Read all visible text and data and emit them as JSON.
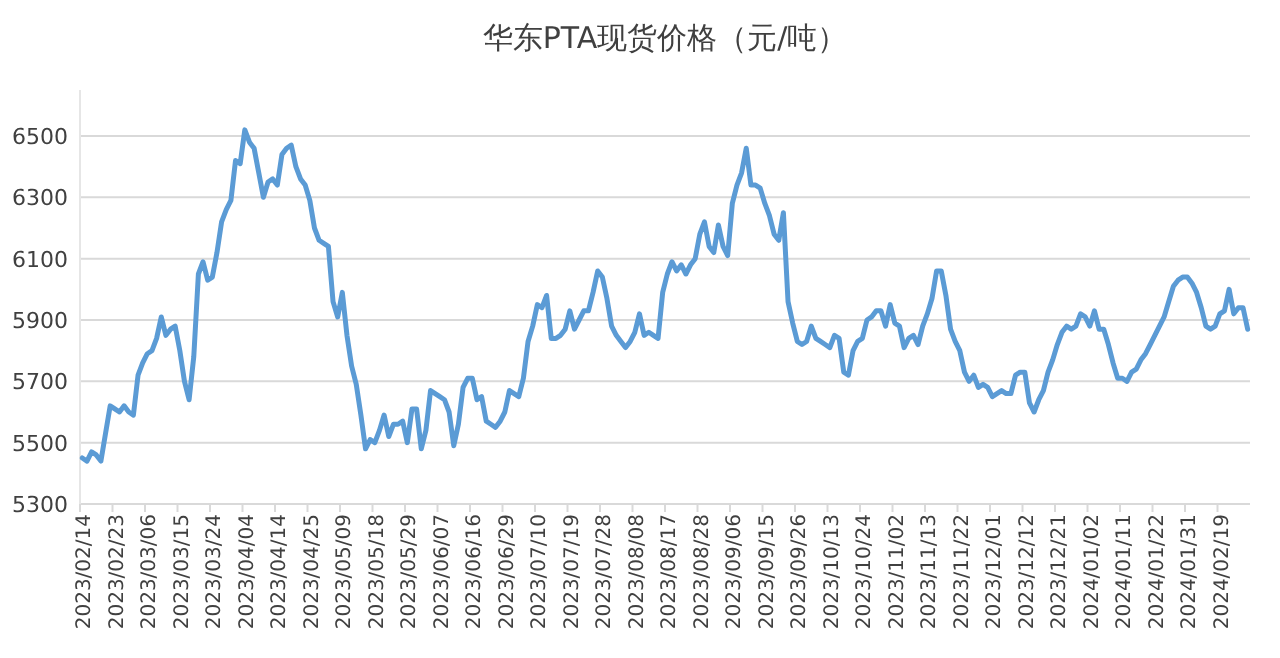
{
  "chart_data": {
    "type": "line",
    "title": "华东PTA现货价格（元/吨）",
    "categories": [
      "2023/02/14",
      null,
      null,
      null,
      null,
      null,
      null,
      "2023/02/23",
      null,
      null,
      null,
      null,
      null,
      null,
      "2023/03/06",
      null,
      null,
      null,
      null,
      null,
      null,
      "2023/03/15",
      null,
      null,
      null,
      null,
      null,
      null,
      "2023/03/24",
      null,
      null,
      null,
      null,
      null,
      null,
      "2023/04/04",
      null,
      null,
      null,
      null,
      null,
      null,
      "2023/04/14",
      null,
      null,
      null,
      null,
      null,
      null,
      "2023/04/25",
      null,
      null,
      null,
      null,
      null,
      null,
      "2023/05/09",
      null,
      null,
      null,
      null,
      null,
      null,
      "2023/05/18",
      null,
      null,
      null,
      null,
      null,
      null,
      "2023/05/29",
      null,
      null,
      null,
      null,
      null,
      null,
      "2023/06/07",
      null,
      null,
      null,
      null,
      null,
      null,
      "2023/06/16",
      null,
      null,
      null,
      null,
      null,
      null,
      "2023/06/29",
      null,
      null,
      null,
      null,
      null,
      null,
      "2023/07/10",
      null,
      null,
      null,
      null,
      null,
      null,
      "2023/07/19",
      null,
      null,
      null,
      null,
      null,
      null,
      "2023/07/28",
      null,
      null,
      null,
      null,
      null,
      null,
      "2023/08/08",
      null,
      null,
      null,
      null,
      null,
      null,
      "2023/08/17",
      null,
      null,
      null,
      null,
      null,
      null,
      "2023/08/28",
      null,
      null,
      null,
      null,
      null,
      null,
      "2023/09/06",
      null,
      null,
      null,
      null,
      null,
      null,
      "2023/09/15",
      null,
      null,
      null,
      null,
      null,
      null,
      "2023/09/26",
      null,
      null,
      null,
      null,
      null,
      null,
      "2023/10/13",
      null,
      null,
      null,
      null,
      null,
      null,
      "2023/10/24",
      null,
      null,
      null,
      null,
      null,
      null,
      "2023/11/02",
      null,
      null,
      null,
      null,
      null,
      null,
      "2023/11/13",
      null,
      null,
      null,
      null,
      null,
      null,
      "2023/11/22",
      null,
      null,
      null,
      null,
      null,
      null,
      "2023/12/01",
      null,
      null,
      null,
      null,
      null,
      null,
      "2023/12/12",
      null,
      null,
      null,
      null,
      null,
      null,
      "2023/12/21",
      null,
      null,
      null,
      null,
      null,
      null,
      "2024/01/02",
      null,
      null,
      null,
      null,
      null,
      null,
      "2024/01/11",
      null,
      null,
      null,
      null,
      null,
      null,
      "2024/01/22",
      null,
      null,
      null,
      null,
      null,
      null,
      "2024/01/31",
      null,
      null,
      null,
      null,
      null,
      null,
      "2024/02/19",
      null,
      null,
      null,
      null,
      null,
      null
    ],
    "series": [
      {
        "color": "#5b9bd5",
        "values": [
          5450,
          5440,
          5470,
          5460,
          5440,
          5530,
          5620,
          5610,
          5600,
          5620,
          5600,
          5590,
          5720,
          5760,
          5790,
          5800,
          5840,
          5910,
          5850,
          5870,
          5880,
          5800,
          5700,
          5640,
          5780,
          6050,
          6090,
          6030,
          6040,
          6120,
          6220,
          6260,
          6290,
          6420,
          6410,
          6520,
          6480,
          6460,
          6380,
          6300,
          6350,
          6360,
          6340,
          6440,
          6460,
          6470,
          6400,
          6360,
          6340,
          6290,
          6200,
          6160,
          6150,
          6140,
          5960,
          5910,
          5990,
          5850,
          5750,
          5690,
          5590,
          5480,
          5510,
          5500,
          5540,
          5590,
          5520,
          5560,
          5560,
          5570,
          5500,
          5610,
          5610,
          5480,
          5540,
          5670,
          5660,
          5650,
          5640,
          5600,
          5490,
          5560,
          5680,
          5710,
          5710,
          5640,
          5650,
          5570,
          5560,
          5550,
          5570,
          5600,
          5670,
          5660,
          5650,
          5710,
          5830,
          5880,
          5950,
          5940,
          5980,
          5840,
          5840,
          5850,
          5870,
          5930,
          5870,
          5900,
          5930,
          5930,
          5990,
          6060,
          6040,
          5970,
          5880,
          5850,
          5830,
          5810,
          5830,
          5860,
          5920,
          5850,
          5860,
          5850,
          5840,
          5990,
          6050,
          6090,
          6060,
          6080,
          6050,
          6080,
          6100,
          6180,
          6220,
          6140,
          6120,
          6210,
          6140,
          6110,
          6280,
          6340,
          6380,
          6460,
          6340,
          6340,
          6330,
          6280,
          6240,
          6180,
          6160,
          6250,
          5960,
          5890,
          5830,
          5820,
          5830,
          5880,
          5840,
          5830,
          5820,
          5810,
          5850,
          5840,
          5730,
          5720,
          5800,
          5830,
          5840,
          5900,
          5910,
          5930,
          5930,
          5880,
          5950,
          5890,
          5880,
          5810,
          5840,
          5850,
          5820,
          5880,
          5920,
          5970,
          6060,
          6060,
          5980,
          5870,
          5830,
          5800,
          5730,
          5700,
          5720,
          5680,
          5690,
          5680,
          5650,
          5660,
          5670,
          5660,
          5660,
          5720,
          5730,
          5730,
          5630,
          5600,
          5640,
          5670,
          5730,
          5770,
          5820,
          5860,
          5880,
          5870,
          5880,
          5920,
          5910,
          5880,
          5930,
          5870,
          5870,
          5820,
          5760,
          5710,
          5710,
          5700,
          5730,
          5740,
          5770,
          5790,
          5820,
          5850,
          5880,
          5910,
          5960,
          6010,
          6030,
          6040,
          6040,
          6020,
          5990,
          5940,
          5880,
          5870,
          5880,
          5920,
          5930,
          6000,
          5920,
          5940,
          5940,
          5870
        ]
      }
    ],
    "ylim": [
      5300,
      6650
    ],
    "yticks": [
      5300,
      5500,
      5700,
      5900,
      6100,
      6300,
      6500
    ],
    "grid": "y"
  }
}
